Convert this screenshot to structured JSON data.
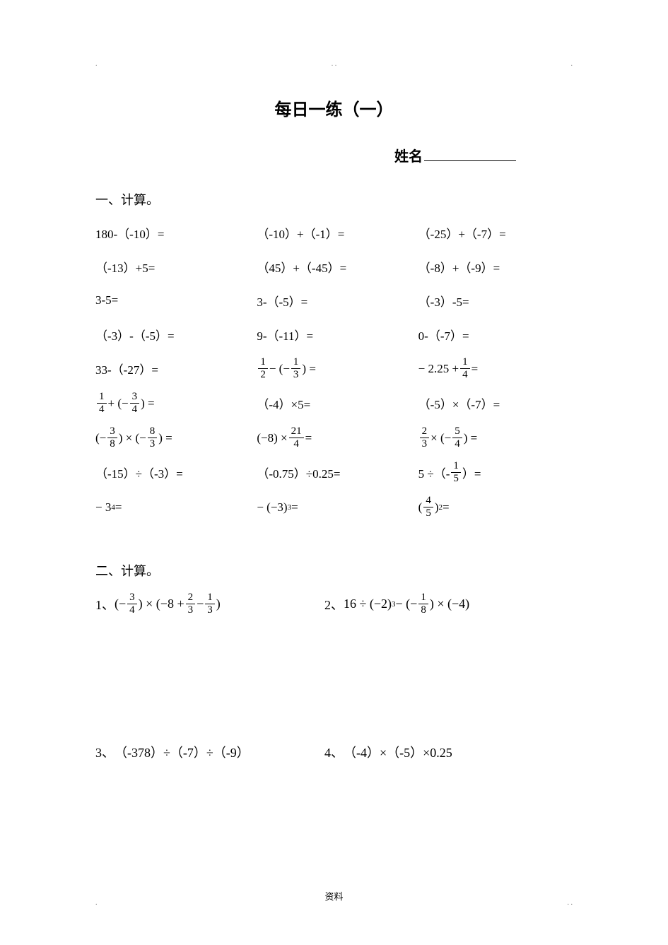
{
  "colors": {
    "background": "#ffffff",
    "text": "#000000",
    "dots": "#888888"
  },
  "typography": {
    "title_fontsize": 24,
    "name_fontsize": 20,
    "section_fontsize": 18,
    "problem_fontsize": 17,
    "footer_fontsize": 13,
    "title_font": "SimHei",
    "body_font": "SimSun"
  },
  "header": {
    "dot_left": ".",
    "dot_mid": ".     .",
    "dot_right": "."
  },
  "title": "每日一练（一）",
  "name_label": "姓名",
  "section1": {
    "heading": "一、计算。",
    "rows": [
      {
        "c1_plain": "180-（-10）=",
        "c2_plain": "（-10）+（-1）=",
        "c3_plain": "（-25）+（-7）="
      },
      {
        "c1_plain": "（-13）+5=",
        "c2_plain": "（45）+（-45）=",
        "c3_plain": "（-8）+（-9）="
      },
      {
        "c1_plain": "3-5=",
        "c2_plain": "3-（-5）=",
        "c3_plain": "（-3）-5="
      },
      {
        "c1_plain": "（-3）-（-5）=",
        "c2_plain": "9-（-11）=",
        "c3_plain": "0-（-7）="
      },
      {
        "c1_plain": "33-（-27）=",
        "c2_frac": {
          "pre": "",
          "f1n": "1",
          "f1d": "2",
          "mid": " − (−",
          "f2n": "1",
          "f2d": "3",
          "post": ") ="
        },
        "c3_frac_single": {
          "pre": "− 2.25 + ",
          "fn": "1",
          "fd": "4",
          "post": " ="
        }
      },
      {
        "c1_frac": {
          "pre": "",
          "f1n": "1",
          "f1d": "4",
          "mid": " + (−",
          "f2n": "3",
          "f2d": "4",
          "post": ") ="
        },
        "c2_plain": "（-4）×5=",
        "c3_plain": "（-5）×（-7）="
      },
      {
        "c1_frac": {
          "pre": "(−",
          "f1n": "3",
          "f1d": "8",
          "mid": ") × (−",
          "f2n": "8",
          "f2d": "3",
          "post": ") ="
        },
        "c2_frac_single": {
          "pre": "(−8) × ",
          "fn": "21",
          "fd": "4",
          "post": " ="
        },
        "c3_frac": {
          "pre": "",
          "f1n": "2",
          "f1d": "3",
          "mid": " × (−",
          "f2n": "5",
          "f2d": "4",
          "post": ") ="
        }
      },
      {
        "c1_plain": "（-15）÷（-3）=",
        "c2_plain": "（-0.75）÷0.25=",
        "c3_frac_single": {
          "pre": "5 ÷（-",
          "fn": "1",
          "fd": "5",
          "post": "）="
        }
      },
      {
        "c1_pow": {
          "pre": "− 3",
          "exp": "4",
          "post": " ="
        },
        "c2_pow": {
          "pre": "− (−3)",
          "exp": "3",
          "post": " ="
        },
        "c3_frac_pow": {
          "pre": "(",
          "fn": "4",
          "fd": "5",
          "post_before_exp": ")",
          "exp": "2",
          "post": " ="
        }
      }
    ]
  },
  "section2": {
    "heading": "二、计算。",
    "problems": [
      {
        "num": "1、",
        "type": "p1",
        "pre": "(−",
        "f1n": "3",
        "f1d": "4",
        "mid1": ") × (−8 + ",
        "f2n": "2",
        "f2d": "3",
        "mid2": " − ",
        "f3n": "1",
        "f3d": "3",
        "post": ")"
      },
      {
        "num": "2、",
        "type": "p2",
        "pre": "16 ÷ (−2)",
        "exp": "3",
        "mid": " − (−",
        "fn": "1",
        "fd": "8",
        "post": ") × (−4)"
      },
      {
        "num": "3、",
        "type": "plain",
        "text": "（-378）÷（-7）÷（-9）"
      },
      {
        "num": "4、",
        "type": "plain",
        "text": "（-4）×（-5）×0.25"
      }
    ]
  },
  "footer": "资料",
  "footer_dots": {
    "left": ".",
    "right": ".    ."
  }
}
